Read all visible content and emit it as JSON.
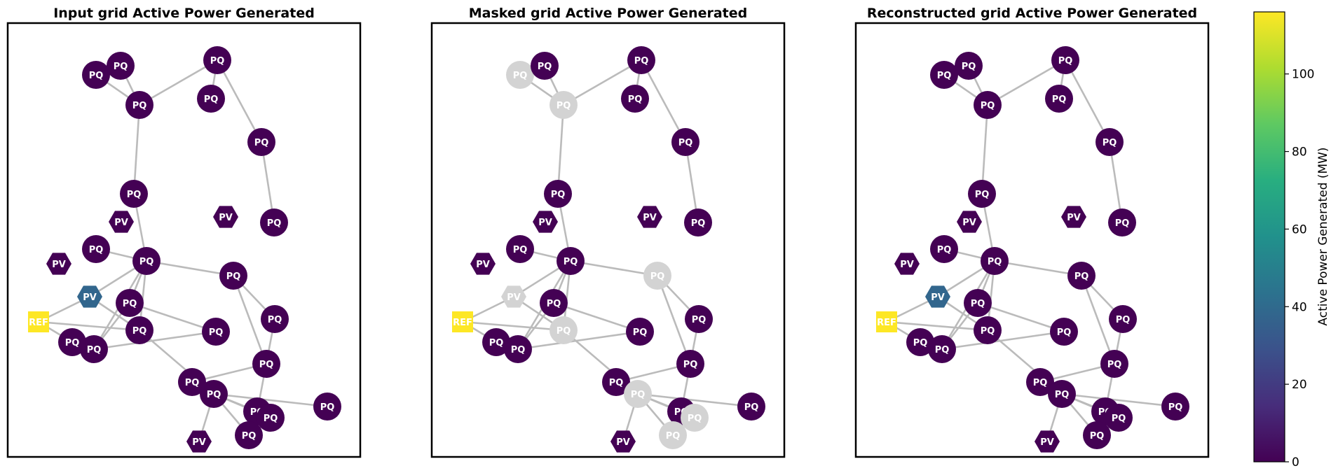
{
  "panels": [
    {
      "title": "Input grid Active Power Generated",
      "mode": "input"
    },
    {
      "title": "Masked grid Active Power Generated",
      "mode": "masked"
    },
    {
      "title": "Reconstructed grid Active Power Generated",
      "mode": "recon"
    }
  ],
  "nodes": [
    {
      "id": 0,
      "label": "PQ",
      "type": "bus",
      "power": 0
    },
    {
      "id": 1,
      "label": "PQ",
      "type": "bus",
      "power": 0
    },
    {
      "id": 2,
      "label": "PQ",
      "type": "bus",
      "power": 0
    },
    {
      "id": 3,
      "label": "PQ",
      "type": "bus",
      "power": 0
    },
    {
      "id": 4,
      "label": "PQ",
      "type": "bus",
      "power": 0
    },
    {
      "id": 5,
      "label": "PQ",
      "type": "bus",
      "power": 0
    },
    {
      "id": 6,
      "label": "PQ",
      "type": "bus",
      "power": 0
    },
    {
      "id": 7,
      "label": "PV",
      "type": "gen",
      "power": 0
    },
    {
      "id": 8,
      "label": "PV",
      "type": "gen",
      "power": 0
    },
    {
      "id": 9,
      "label": "PQ",
      "type": "bus",
      "power": 0
    },
    {
      "id": 10,
      "label": "PQ",
      "type": "bus",
      "power": 0
    },
    {
      "id": 11,
      "label": "PQ",
      "type": "bus",
      "power": 0
    },
    {
      "id": 12,
      "label": "PV",
      "type": "gen",
      "power": 0
    },
    {
      "id": 13,
      "label": "PQ",
      "type": "bus",
      "power": 0
    },
    {
      "id": 14,
      "label": "PQ",
      "type": "bus",
      "power": 0
    },
    {
      "id": 15,
      "label": "PQ",
      "type": "bus",
      "power": 0
    },
    {
      "id": 16,
      "label": "PV",
      "type": "gen",
      "power": 38
    },
    {
      "id": 17,
      "label": "REF",
      "type": "ref",
      "power": 116
    },
    {
      "id": 18,
      "label": "PQ",
      "type": "bus",
      "power": 0
    },
    {
      "id": 19,
      "label": "PQ",
      "type": "bus",
      "power": 0
    },
    {
      "id": 20,
      "label": "PQ",
      "type": "bus",
      "power": 0
    },
    {
      "id": 21,
      "label": "PQ",
      "type": "bus",
      "power": 0
    },
    {
      "id": 22,
      "label": "PQ",
      "type": "bus",
      "power": 0
    },
    {
      "id": 23,
      "label": "PQ",
      "type": "bus",
      "power": 0
    },
    {
      "id": 24,
      "label": "PQ",
      "type": "bus",
      "power": 0
    },
    {
      "id": 25,
      "label": "PQ",
      "type": "bus",
      "power": 0
    },
    {
      "id": 26,
      "label": "PQ",
      "type": "bus",
      "power": 0
    },
    {
      "id": 27,
      "label": "PQ",
      "type": "bus",
      "power": 0
    },
    {
      "id": 28,
      "label": "PV",
      "type": "gen",
      "power": 0
    },
    {
      "id": 29,
      "label": "PQ",
      "type": "bus",
      "power": 0
    }
  ],
  "masked_nodes": [
    0,
    2,
    13,
    16,
    19,
    25,
    27,
    29
  ],
  "edges": [
    [
      0,
      2
    ],
    [
      1,
      2
    ],
    [
      2,
      3
    ],
    [
      3,
      5
    ],
    [
      4,
      3
    ],
    [
      2,
      6
    ],
    [
      5,
      9
    ],
    [
      6,
      11
    ],
    [
      11,
      13
    ],
    [
      11,
      14
    ],
    [
      11,
      10
    ],
    [
      11,
      15
    ],
    [
      16,
      11
    ],
    [
      16,
      17
    ],
    [
      16,
      19
    ],
    [
      17,
      19
    ],
    [
      17,
      18
    ],
    [
      19,
      11
    ],
    [
      19,
      25
    ],
    [
      14,
      15
    ],
    [
      14,
      20
    ],
    [
      15,
      20
    ],
    [
      13,
      22
    ],
    [
      13,
      21
    ],
    [
      21,
      23
    ],
    [
      22,
      24
    ],
    [
      23,
      25
    ],
    [
      24,
      25
    ],
    [
      25,
      27
    ],
    [
      25,
      29
    ],
    [
      25,
      26
    ],
    [
      25,
      28
    ]
  ],
  "colorbar": {
    "label": "Active Power Generated (MW)",
    "ticks": [
      "0",
      "20",
      "40",
      "60",
      "80",
      "100"
    ],
    "min": 0,
    "max": 116,
    "colormap": "viridis"
  },
  "colors": {
    "masked": "#d3d3d3",
    "edge": "#bbbbbb",
    "frame": "#000000"
  }
}
